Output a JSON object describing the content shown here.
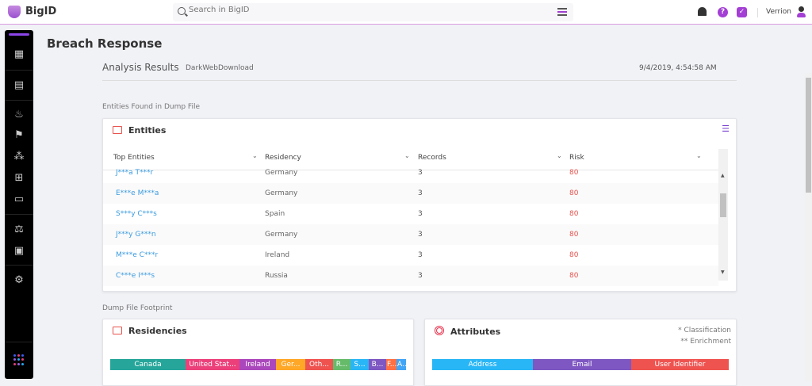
{
  "app": {
    "brand": "BigID",
    "search_placeholder": "Search in BigID",
    "user": "Verrion"
  },
  "page": {
    "title": "Breach Response",
    "analysis_label": "Analysis Results",
    "dump_name": "DarkWebDownload",
    "timestamp": "9/4/2019, 4:54:58 AM"
  },
  "entities_section": "Entities Found in Dump File",
  "entities": {
    "title": "Entities",
    "columns": [
      "Top Entities",
      "Residency",
      "Records",
      "Risk"
    ],
    "rows": [
      {
        "name": "J***a T***r",
        "residency": "Germany",
        "records": "3",
        "risk": "80"
      },
      {
        "name": "E***e M***a",
        "residency": "Germany",
        "records": "3",
        "risk": "80"
      },
      {
        "name": "S***y C***s",
        "residency": "Spain",
        "records": "3",
        "risk": "80"
      },
      {
        "name": "J***y G***n",
        "residency": "Germany",
        "records": "3",
        "risk": "80"
      },
      {
        "name": "M***e C***r",
        "residency": "Ireland",
        "records": "3",
        "risk": "80"
      },
      {
        "name": "C***e I***s",
        "residency": "Russia",
        "records": "3",
        "risk": "80"
      }
    ]
  },
  "footprint_section": "Dump File Footprint",
  "residencies": {
    "title": "Residencies",
    "segments": [
      {
        "label": "Canada",
        "color": "#26a69a"
      },
      {
        "label": "United Stat...",
        "color": "#ec407a"
      },
      {
        "label": "Ireland",
        "color": "#ab47bc"
      },
      {
        "label": "Ger...",
        "color": "#ffa726"
      },
      {
        "label": "Oth...",
        "color": "#ef5350"
      },
      {
        "label": "R...",
        "color": "#66bb6a"
      },
      {
        "label": "S...",
        "color": "#29b6f6"
      },
      {
        "label": "B...",
        "color": "#7e57c2"
      },
      {
        "label": "F...",
        "color": "#ff7043"
      },
      {
        "label": "A...",
        "color": "#42a5f5"
      }
    ]
  },
  "attributes": {
    "title": "Attributes",
    "legend1": "* Classification",
    "legend2": "** Enrichment",
    "segments": [
      {
        "label": "Address",
        "color": "#29b6f6"
      },
      {
        "label": "Email",
        "color": "#7e57c2"
      },
      {
        "label": "User Identifier",
        "color": "#ef5350"
      }
    ]
  }
}
